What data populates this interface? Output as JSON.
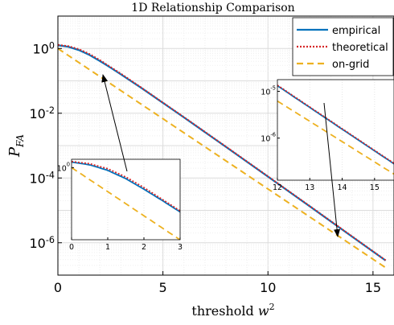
{
  "chart_data": {
    "type": "line",
    "title": "1D Relationship Comparison",
    "xlabel": "threshold w²",
    "ylabel": "P_FA",
    "xlim": [
      0,
      16
    ],
    "ylim_log10": [
      -7,
      1
    ],
    "y_scale": "log",
    "grid": true,
    "legend_position": "top-right",
    "x_ticks": [
      "0",
      "5",
      "10",
      "15"
    ],
    "x_tick_values": [
      0,
      5,
      10,
      15
    ],
    "y_ticks": [
      "10^0",
      "10^-2",
      "10^-4",
      "10^-6"
    ],
    "y_tick_values_log10": [
      0,
      -2,
      -4,
      -6
    ],
    "series": [
      {
        "name": "empirical",
        "color": "#0072BD",
        "style": "solid",
        "x": [
          0,
          0.5,
          1,
          1.5,
          2,
          2.5,
          3,
          4,
          5,
          6,
          8,
          10,
          12,
          14,
          15.6
        ],
        "y_log10": [
          0.1,
          0.05,
          -0.05,
          -0.2,
          -0.39,
          -0.59,
          -0.8,
          -1.23,
          -1.68,
          -2.13,
          -3.04,
          -3.96,
          -4.88,
          -5.81,
          -6.55
        ]
      },
      {
        "name": "theoretical",
        "color": "#D62728",
        "style": "dotted",
        "x": [
          0,
          0.5,
          1,
          1.5,
          2,
          2.5,
          3,
          4,
          5,
          6,
          8,
          10,
          12,
          14,
          15.6
        ],
        "y_log10": [
          0.11,
          0.07,
          -0.02,
          -0.17,
          -0.36,
          -0.57,
          -0.78,
          -1.22,
          -1.67,
          -2.12,
          -3.03,
          -3.95,
          -4.87,
          -5.8,
          -6.54
        ]
      },
      {
        "name": "on-grid",
        "color": "#EDB120",
        "style": "dashed",
        "x": [
          0,
          15.6
        ],
        "y_log10": [
          0.0,
          -6.77
        ]
      }
    ],
    "insets": [
      {
        "x_ticks": [
          "0",
          "1",
          "2",
          "3"
        ],
        "x_tick_values": [
          0,
          1,
          2,
          3
        ],
        "y_ticks": [
          "10^0"
        ],
        "xlim": [
          0,
          3
        ],
        "ylim_log10": [
          -1.3,
          0.15
        ]
      },
      {
        "x_ticks": [
          "12",
          "13",
          "14",
          "15"
        ],
        "x_tick_values": [
          12,
          13,
          14,
          15
        ],
        "y_ticks": [
          "10^-5",
          "10^-6"
        ],
        "xlim": [
          12,
          15.6
        ],
        "ylim_log10": [
          -6.9,
          -4.75
        ]
      }
    ]
  }
}
